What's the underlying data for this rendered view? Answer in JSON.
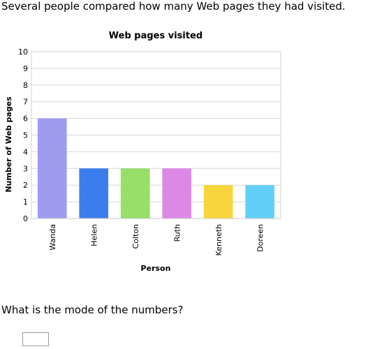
{
  "intro": "Several people compared how many Web pages they had visited.",
  "question": "What is the mode of the numbers?",
  "answer": {
    "value": ""
  },
  "chart_data": {
    "type": "bar",
    "title": "Web pages visited",
    "xlabel": "Person",
    "ylabel": "Number of Web pages",
    "categories": [
      "Wanda",
      "Helen",
      "Colton",
      "Ruth",
      "Kenneth",
      "Doreen"
    ],
    "values": [
      6,
      3,
      3,
      3,
      2,
      2
    ],
    "colors": [
      "#9d9cee",
      "#3b7ded",
      "#97df69",
      "#dc89e6",
      "#f7d63c",
      "#63cff8"
    ],
    "ylim": [
      0,
      10
    ],
    "yticks": [
      0,
      1,
      2,
      3,
      4,
      5,
      6,
      7,
      8,
      9,
      10
    ],
    "grid": true,
    "legend": "none"
  }
}
